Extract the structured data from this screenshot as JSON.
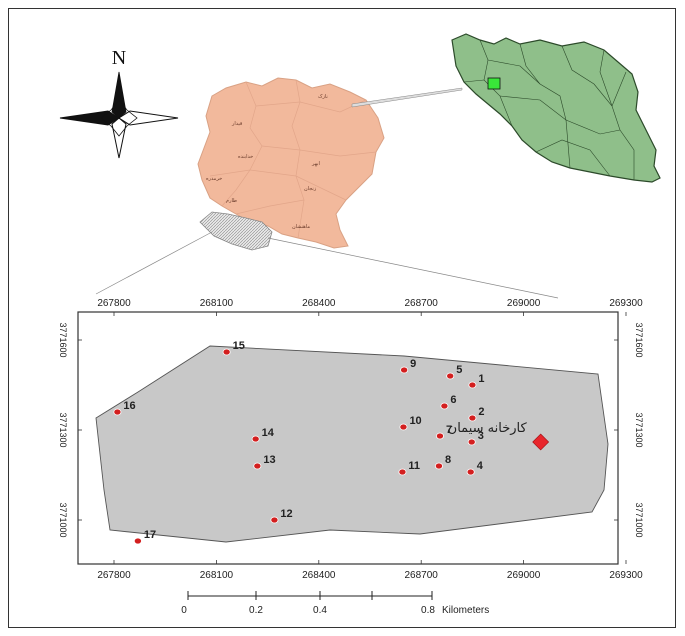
{
  "north_label": "N",
  "colors": {
    "province_fill": "#f2b99c",
    "iran_fill": "#8fbf8a",
    "highlight_green": "#39e639",
    "study_area_fill": "#c8c8c8",
    "point_color": "#d31f1f",
    "factory_color": "#e8262c"
  },
  "province_counties": [
    "نازک",
    "قیدار",
    "خدابنده",
    "ابهر",
    "خرمدره",
    "طارم",
    "زنجان",
    "ماهنشان"
  ],
  "inset": {
    "x_ticks": [
      "267800",
      "268100",
      "268400",
      "268700",
      "269000",
      "269300"
    ],
    "y_ticks": [
      "3771600",
      "3771300",
      "3771000"
    ]
  },
  "sample_points": [
    {
      "id": "1",
      "x": 268850,
      "y": 3771410
    },
    {
      "id": "2",
      "x": 268850,
      "y": 3771300
    },
    {
      "id": "3",
      "x": 268848,
      "y": 3771220
    },
    {
      "id": "4",
      "x": 268845,
      "y": 3771120
    },
    {
      "id": "5",
      "x": 268785,
      "y": 3771440
    },
    {
      "id": "6",
      "x": 268768,
      "y": 3771340
    },
    {
      "id": "7",
      "x": 268755,
      "y": 3771240
    },
    {
      "id": "8",
      "x": 268752,
      "y": 3771140
    },
    {
      "id": "9",
      "x": 268650,
      "y": 3771460
    },
    {
      "id": "10",
      "x": 268648,
      "y": 3771270
    },
    {
      "id": "11",
      "x": 268645,
      "y": 3771120
    },
    {
      "id": "12",
      "x": 268270,
      "y": 3770960
    },
    {
      "id": "13",
      "x": 268220,
      "y": 3771140
    },
    {
      "id": "14",
      "x": 268215,
      "y": 3771230
    },
    {
      "id": "15",
      "x": 268130,
      "y": 3771520
    },
    {
      "id": "16",
      "x": 267810,
      "y": 3771320
    },
    {
      "id": "17",
      "x": 267870,
      "y": 3770890
    }
  ],
  "factory": {
    "label": "کارخانه سیمان",
    "x": 269050,
    "y": 3771220
  },
  "scale_bar": {
    "ticks": [
      "0",
      "0.2",
      "0.4",
      "0.8"
    ],
    "unit": "Kilometers"
  }
}
